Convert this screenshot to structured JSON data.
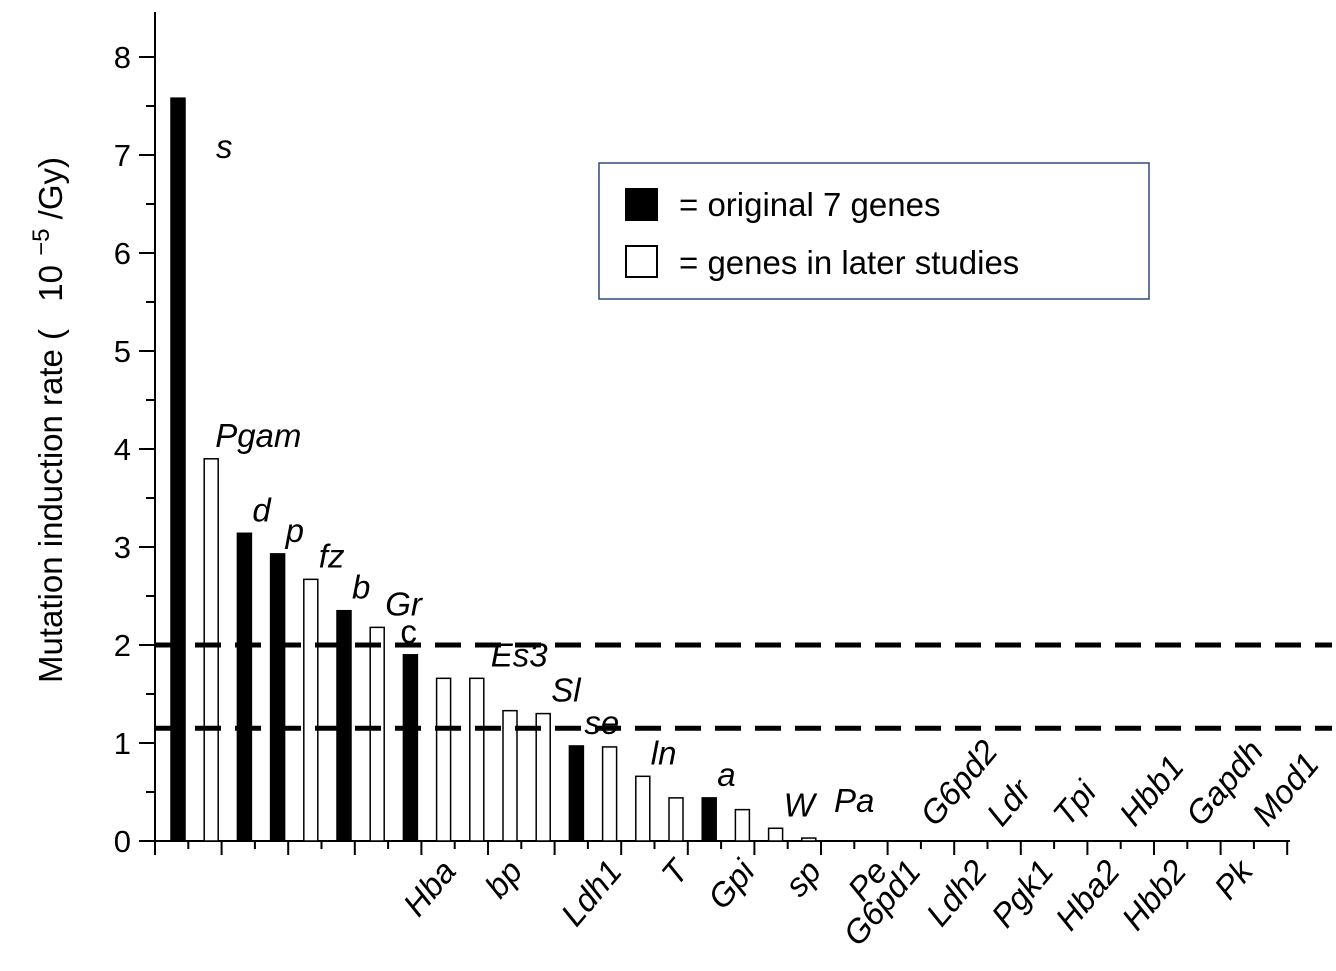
{
  "chart_data": {
    "type": "bar",
    "title": "",
    "xlabel": "",
    "ylabel_prefix": "Mutation induction rate (",
    "ylabel_base": "10",
    "ylabel_exp": "−5",
    "ylabel_unit": "/Gy)",
    "ylim": [
      0,
      8.2
    ],
    "yticks": [
      0,
      1,
      2,
      3,
      4,
      5,
      6,
      7,
      8
    ],
    "grid": false,
    "legend_position": "top-right",
    "legend": [
      {
        "label": "= original 7 genes",
        "fill": "#000000"
      },
      {
        "label": "= genes in later studies",
        "fill": "#ffffff"
      }
    ],
    "reference_lines": [
      2.0,
      1.15
    ],
    "bars": [
      {
        "gene": "s",
        "value": 7.58,
        "original": true,
        "label_pos": "above"
      },
      {
        "gene": "Pgam",
        "value": 3.9,
        "original": false,
        "label_pos": "above"
      },
      {
        "gene": "d",
        "value": 3.14,
        "original": true,
        "label_pos": "above"
      },
      {
        "gene": "p",
        "value": 2.93,
        "original": true,
        "label_pos": "above"
      },
      {
        "gene": "fz",
        "value": 2.67,
        "original": false,
        "label_pos": "above"
      },
      {
        "gene": "b",
        "value": 2.35,
        "original": true,
        "label_pos": "above"
      },
      {
        "gene": "Gr",
        "value": 2.18,
        "original": false,
        "label_pos": "above"
      },
      {
        "gene": "c",
        "value": 1.9,
        "original": true,
        "label_pos": "above"
      },
      {
        "gene": "Hba",
        "value": 1.66,
        "original": false,
        "label_pos": "below"
      },
      {
        "gene": "Es3",
        "value": 1.66,
        "original": false,
        "label_pos": "above"
      },
      {
        "gene": "bp",
        "value": 1.33,
        "original": false,
        "label_pos": "below"
      },
      {
        "gene": "Sl",
        "value": 1.3,
        "original": false,
        "label_pos": "above"
      },
      {
        "gene": "se",
        "value": 0.97,
        "original": true,
        "label_pos": "above"
      },
      {
        "gene": "Ldh1",
        "value": 0.96,
        "original": false,
        "label_pos": "below"
      },
      {
        "gene": "ln",
        "value": 0.66,
        "original": false,
        "label_pos": "above"
      },
      {
        "gene": "T",
        "value": 0.44,
        "original": false,
        "label_pos": "below"
      },
      {
        "gene": "a",
        "value": 0.44,
        "original": true,
        "label_pos": "above"
      },
      {
        "gene": "Gpi",
        "value": 0.32,
        "original": false,
        "label_pos": "below"
      },
      {
        "gene": "W",
        "value": 0.13,
        "original": false,
        "label_pos": "above"
      },
      {
        "gene": "sp",
        "value": 0.03,
        "original": false,
        "label_pos": "below"
      },
      {
        "gene": "Pa",
        "value": 0.0,
        "original": false,
        "label_pos": "above"
      },
      {
        "gene": "Pe",
        "value": 0.0,
        "original": false,
        "label_pos": "below"
      },
      {
        "gene": "G6pd1",
        "value": 0.0,
        "original": false,
        "label_pos": "below"
      },
      {
        "gene": "G6pd2",
        "value": 0.0,
        "original": false,
        "label_pos": "above"
      },
      {
        "gene": "Ldh2",
        "value": 0.0,
        "original": false,
        "label_pos": "below"
      },
      {
        "gene": "Ldr",
        "value": 0.0,
        "original": false,
        "label_pos": "above"
      },
      {
        "gene": "Pgk1",
        "value": 0.0,
        "original": false,
        "label_pos": "below"
      },
      {
        "gene": "Tpi",
        "value": 0.0,
        "original": false,
        "label_pos": "above"
      },
      {
        "gene": "Hba2",
        "value": 0.0,
        "original": false,
        "label_pos": "below"
      },
      {
        "gene": "Hbb1",
        "value": 0.0,
        "original": false,
        "label_pos": "above"
      },
      {
        "gene": "Hbb2",
        "value": 0.0,
        "original": false,
        "label_pos": "below"
      },
      {
        "gene": "Gapdh",
        "value": 0.0,
        "original": false,
        "label_pos": "above"
      },
      {
        "gene": "Pk",
        "value": 0.0,
        "original": false,
        "label_pos": "below"
      },
      {
        "gene": "Mod1",
        "value": 0.0,
        "original": false,
        "label_pos": "above"
      }
    ]
  }
}
